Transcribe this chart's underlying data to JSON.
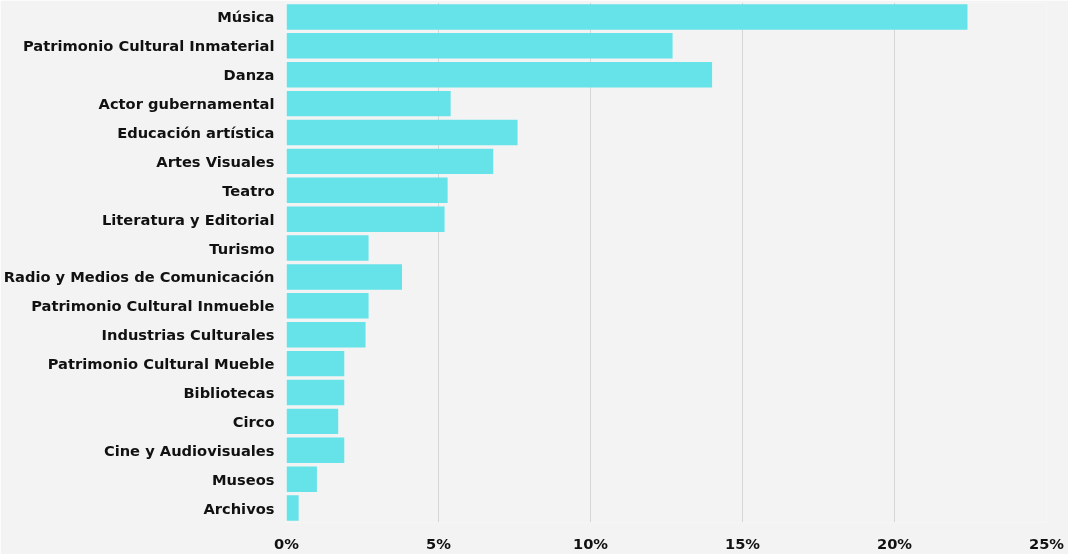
{
  "chart_data": {
    "type": "bar",
    "orientation": "horizontal",
    "categories": [
      "Música",
      "Patrimonio Cultural Inmaterial",
      "Danza",
      "Actor gubernamental",
      "Educación artística",
      "Artes Visuales",
      "Teatro",
      "Literatura y Editorial",
      "Turismo",
      "Radio y Medios de Comunicación",
      "Patrimonio Cultural Inmueble",
      "Industrias Culturales",
      "Patrimonio Cultural Mueble",
      "Bibliotecas",
      "Circo",
      "Cine y Audiovisuales",
      "Museos",
      "Archivos"
    ],
    "values": [
      22.4,
      12.7,
      14.0,
      5.4,
      7.6,
      6.8,
      5.3,
      5.2,
      2.7,
      3.8,
      2.7,
      2.6,
      1.9,
      1.9,
      1.7,
      1.9,
      1.0,
      0.4
    ],
    "color": "#66e3e8",
    "xlim": [
      0,
      25
    ],
    "xticks": [
      {
        "value": 0,
        "label": "0%"
      },
      {
        "value": 5,
        "label": "5%"
      },
      {
        "value": 10,
        "label": "10%"
      },
      {
        "value": 15,
        "label": "15%"
      },
      {
        "value": 20,
        "label": "20%"
      },
      {
        "value": 25,
        "label": "25%"
      }
    ],
    "grid": "x"
  }
}
